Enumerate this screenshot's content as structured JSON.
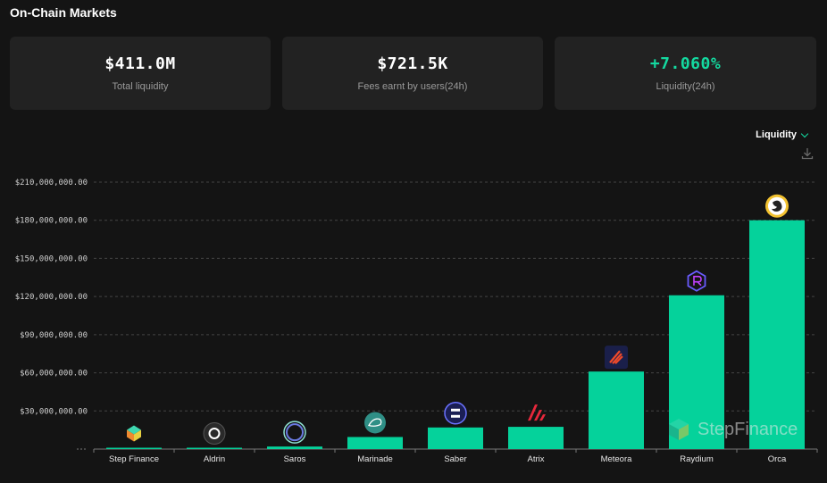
{
  "header": {
    "title": "On-Chain Markets"
  },
  "stats": [
    {
      "value": "$411.0M",
      "label": "Total liquidity",
      "color": "#ffffff"
    },
    {
      "value": "$721.5K",
      "label": "Fees earnt by users(24h)",
      "color": "#ffffff"
    },
    {
      "value": "+7.060%",
      "label": "Liquidity(24h)",
      "color": "#14d9a0"
    }
  ],
  "controls": {
    "metric_selected": "Liquidity",
    "download_icon": "download-icon"
  },
  "watermark": {
    "text": "StepFinance"
  },
  "colors": {
    "bar": "#05d29b",
    "grid": "#444444",
    "accent": "#14d9a0"
  },
  "chart_data": {
    "type": "bar",
    "categories": [
      "Step Finance",
      "Aldrin",
      "Saros",
      "Marinade",
      "Saber",
      "Atrix",
      "Meteora",
      "Raydium",
      "Orca"
    ],
    "values": [
      200000,
      1000000,
      2000000,
      9500000,
      17000000,
      17500000,
      61000000,
      121000000,
      180000000
    ],
    "icons": [
      "step-finance-logo-icon",
      "aldrin-logo-icon",
      "saros-logo-icon",
      "marinade-logo-icon",
      "saber-logo-icon",
      "atrix-logo-icon",
      "meteora-logo-icon",
      "raydium-logo-icon",
      "orca-logo-icon"
    ],
    "yticks": [
      {
        "value": 30000000,
        "label": "$30,000,000.00"
      },
      {
        "value": 60000000,
        "label": "$60,000,000.00"
      },
      {
        "value": 90000000,
        "label": "$90,000,000.00"
      },
      {
        "value": 120000000,
        "label": "$120,000,000.00"
      },
      {
        "value": 150000000,
        "label": "$150,000,000.00"
      },
      {
        "value": 180000000,
        "label": "$180,000,000.00"
      },
      {
        "value": 210000000,
        "label": "$210,000,000.00"
      }
    ],
    "ylim": [
      0,
      210000000
    ],
    "grid": true
  }
}
